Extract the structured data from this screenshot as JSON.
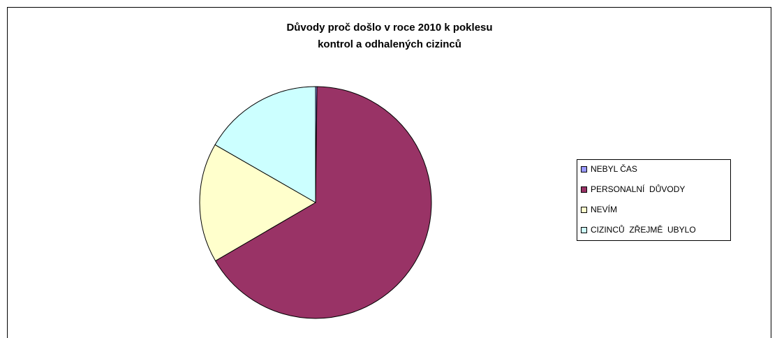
{
  "chart_data": {
    "type": "pie",
    "title": [
      "Důvody proč došlo v roce 2010 k poklesu",
      "kontrol a odhalených cizinců"
    ],
    "categories": [
      "NEBYL ČAS",
      "PERSONALNÍ  DŮVODY",
      "NEVÍM",
      "CIZINCŮ  ZŘEJMĚ  UBYLO"
    ],
    "values": [
      0.2,
      66.4,
      16.7,
      16.7
    ],
    "colors": [
      "#9999ff",
      "#993366",
      "#ffffcc",
      "#ccffff"
    ],
    "legend": "right"
  }
}
